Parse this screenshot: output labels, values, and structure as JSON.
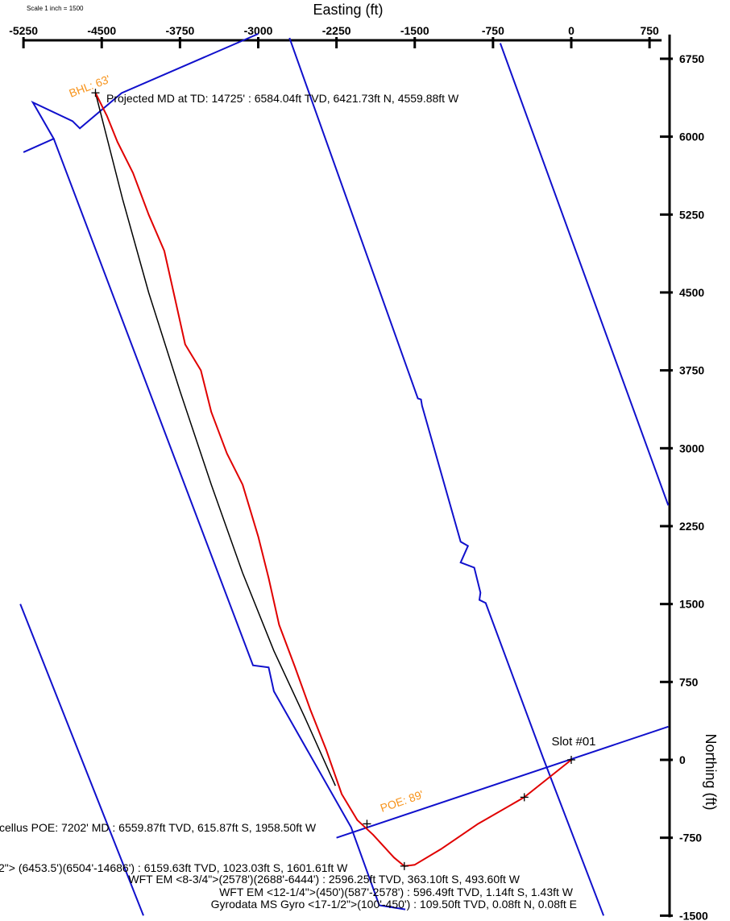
{
  "chart_data": {
    "type": "scatter",
    "title": "",
    "scale_note": "Scale 1 inch = 1500",
    "xlabel": "Easting (ft)",
    "ylabel": "Northing (ft)",
    "xlim": [
      -5250,
      750
    ],
    "ylim": [
      -1500,
      6750
    ],
    "x_ticks": [
      -5250,
      -4500,
      -3750,
      -3000,
      -2250,
      -1500,
      -750,
      0,
      750
    ],
    "x_tick_labels": [
      "-5250",
      "-4500",
      "-3750",
      "-3000",
      "-2250",
      "-1500",
      "-750",
      "0",
      "750"
    ],
    "y_ticks": [
      6750,
      6000,
      5250,
      4500,
      3750,
      3000,
      2250,
      1500,
      750,
      0,
      -750,
      -1500
    ],
    "y_tick_labels": [
      "6750",
      "6000",
      "5250",
      "4500",
      "3750",
      "3000",
      "2250",
      "1500",
      "750",
      "0",
      "-750",
      "-1500"
    ],
    "grid": false,
    "series": [
      {
        "role": "actual-path",
        "color": "#e00000",
        "x": [
          0,
          -450,
          -900,
          -1250,
          -1500,
          -1600,
          -1700,
          -1900,
          -2050,
          -2200,
          -2350,
          -2500,
          -2650,
          -2800,
          -2900,
          -3000,
          -3150,
          -3300,
          -3450,
          -3550,
          -3700,
          -3800,
          -3900,
          -4050,
          -4200,
          -4350,
          -4450,
          -4560
        ],
        "y": [
          0,
          -360,
          -620,
          -860,
          -1010,
          -1023,
          -940,
          -720,
          -580,
          -330,
          100,
          480,
          900,
          1300,
          1750,
          2150,
          2650,
          2950,
          3350,
          3750,
          4000,
          4450,
          4900,
          5250,
          5650,
          5950,
          6200,
          6422
        ]
      },
      {
        "role": "planned-path",
        "color": "#000000",
        "x": [
          -2260,
          -2550,
          -2850,
          -3150,
          -3450,
          -3750,
          -4050,
          -4300,
          -4560
        ],
        "y": [
          -250,
          400,
          1050,
          1800,
          2650,
          3550,
          4500,
          5400,
          6422
        ]
      },
      {
        "role": "lease-boundaries",
        "color": "#1010cc",
        "lines": [
          {
            "x": [
              -5250,
              -4960,
              -5160,
              -4780,
              -4710,
              -4310,
              -3000
            ],
            "y": [
              5850,
              5980,
              6330,
              6150,
              6080,
              6420,
              6990
            ]
          },
          {
            "x": [
              -4960,
              -3050,
              -2900,
              -2850,
              -2110,
              -1840,
              -1590
            ],
            "y": [
              5980,
              910,
              890,
              660,
              -650,
              -1400,
              -1440
            ]
          },
          {
            "x": [
              -2700,
              -1470,
              -1440,
              -1430,
              -1060,
              -990,
              -1060,
              -930,
              -870,
              -880,
              -820,
              -270,
              310
            ],
            "y": [
              6950,
              3480,
              3470,
              3410,
              2100,
              2060,
              1900,
              1850,
              1610,
              1540,
              1510,
              20,
              -1500
            ]
          },
          {
            "x": [
              -680,
              930
            ],
            "y": [
              6900,
              2450
            ]
          },
          {
            "x": [
              -5280,
              -4100
            ],
            "y": [
              1500,
              -1500
            ]
          },
          {
            "x": [
              -2250,
              930
            ],
            "y": [
              -750,
              320
            ]
          }
        ]
      }
    ],
    "markers": [
      {
        "x": 0,
        "y": 0
      },
      {
        "x": -450,
        "y": -360
      },
      {
        "x": -1600,
        "y": -1023
      },
      {
        "x": -1958,
        "y": -616
      },
      {
        "x": -4560,
        "y": 6422
      }
    ],
    "annotations": {
      "slot": "Slot #01",
      "bhl": "BHL: 63'",
      "poe": "POE: 89'",
      "projected": "Projected MD at TD: 14725' : 6584.04ft TVD, 6421.73ft N, 4559.88ft W",
      "marcellus": "cellus POE: 7202' MD : 6559.87ft TVD, 615.87ft S, 1958.50ft W",
      "survey_1": "2\"> (6453.5')(6504'-14686') : 6159.63ft TVD, 1023.03ft S, 1601.61ft W",
      "survey_2": "WFT EM <8-3/4\">(2578')(2688'-6444') : 2596.25ft TVD, 363.10ft S, 493.60ft W",
      "survey_3": "WFT EM <12-1/4\">(450')(587'-2578') : 596.49ft TVD, 1.14ft S, 1.43ft W",
      "survey_4": "Gyrodata MS Gyro <17-1/2\">(100'-450') : 109.50ft TVD, 0.08ft N, 0.08ft E"
    }
  }
}
